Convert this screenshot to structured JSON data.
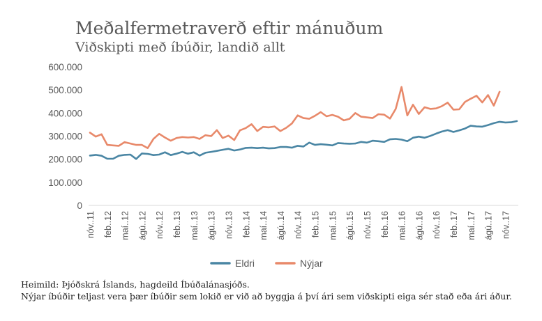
{
  "chart_data": {
    "type": "line",
    "title": "Meðalfermetraverð eftir mánuðum",
    "subtitle": "Viðskipti með íbúðir, landið allt",
    "y_ticks": [
      "0",
      "100.000",
      "200.000",
      "300.000",
      "400.000",
      "500.000",
      "600.000"
    ],
    "ylim": [
      0,
      600000
    ],
    "x_tick_labels": [
      "nóv..11",
      "feb..12",
      "maí..12",
      "ágú..12",
      "nóv..12",
      "feb..13",
      "maí..13",
      "ágú..13",
      "nóv..13",
      "feb..14",
      "maí..14",
      "ágú..14",
      "nóv..14",
      "feb..15",
      "maí..15",
      "ágú..15",
      "nóv..15",
      "feb..16",
      "maí..16",
      "ágú..16",
      "nóv..16",
      "feb..17",
      "maí..17",
      "ágú..17",
      "nóv..17"
    ],
    "grid": false,
    "legend": "bottom-center",
    "series": [
      {
        "name": "Eldri",
        "color": "#4a86a4",
        "values": [
          216000,
          219000,
          215000,
          202000,
          202000,
          215000,
          219000,
          220000,
          201000,
          225000,
          223000,
          218000,
          220000,
          230000,
          218000,
          224000,
          232000,
          224000,
          230000,
          216000,
          228000,
          232000,
          236000,
          241000,
          245000,
          238000,
          242000,
          249000,
          250000,
          248000,
          250000,
          247000,
          248000,
          253000,
          253000,
          250000,
          258000,
          255000,
          272000,
          262000,
          265000,
          263000,
          260000,
          270000,
          268000,
          267000,
          268000,
          275000,
          272000,
          280000,
          278000,
          275000,
          286000,
          288000,
          285000,
          278000,
          293000,
          298000,
          293000,
          301000,
          311000,
          320000,
          326000,
          318000,
          325000,
          333000,
          345000,
          342000,
          341000,
          348000,
          356000,
          362000,
          359000,
          360000,
          365000
        ]
      },
      {
        "name": "Nýjar",
        "color": "#e8896a",
        "values": [
          315000,
          298000,
          308000,
          262000,
          260000,
          258000,
          274000,
          268000,
          262000,
          262000,
          248000,
          288000,
          310000,
          294000,
          280000,
          292000,
          296000,
          294000,
          296000,
          288000,
          304000,
          300000,
          326000,
          292000,
          302000,
          283000,
          325000,
          335000,
          352000,
          322000,
          340000,
          338000,
          342000,
          322000,
          336000,
          355000,
          390000,
          378000,
          375000,
          388000,
          404000,
          386000,
          392000,
          384000,
          368000,
          375000,
          400000,
          384000,
          381000,
          378000,
          395000,
          393000,
          376000,
          418000,
          513000,
          390000,
          436000,
          396000,
          425000,
          418000,
          420000,
          430000,
          445000,
          415000,
          416000,
          448000,
          462000,
          475000,
          446000,
          478000,
          432000,
          492000
        ]
      }
    ]
  },
  "footer": {
    "source": "Heimild: Þjóðskrá Íslands, hagdeild Íbúðalánasjóðs.",
    "note": "Nýjar íbúðir teljast vera þær íbúðir sem lokið er við að byggja á því ári sem viðskipti eiga sér stað eða ári áður."
  }
}
